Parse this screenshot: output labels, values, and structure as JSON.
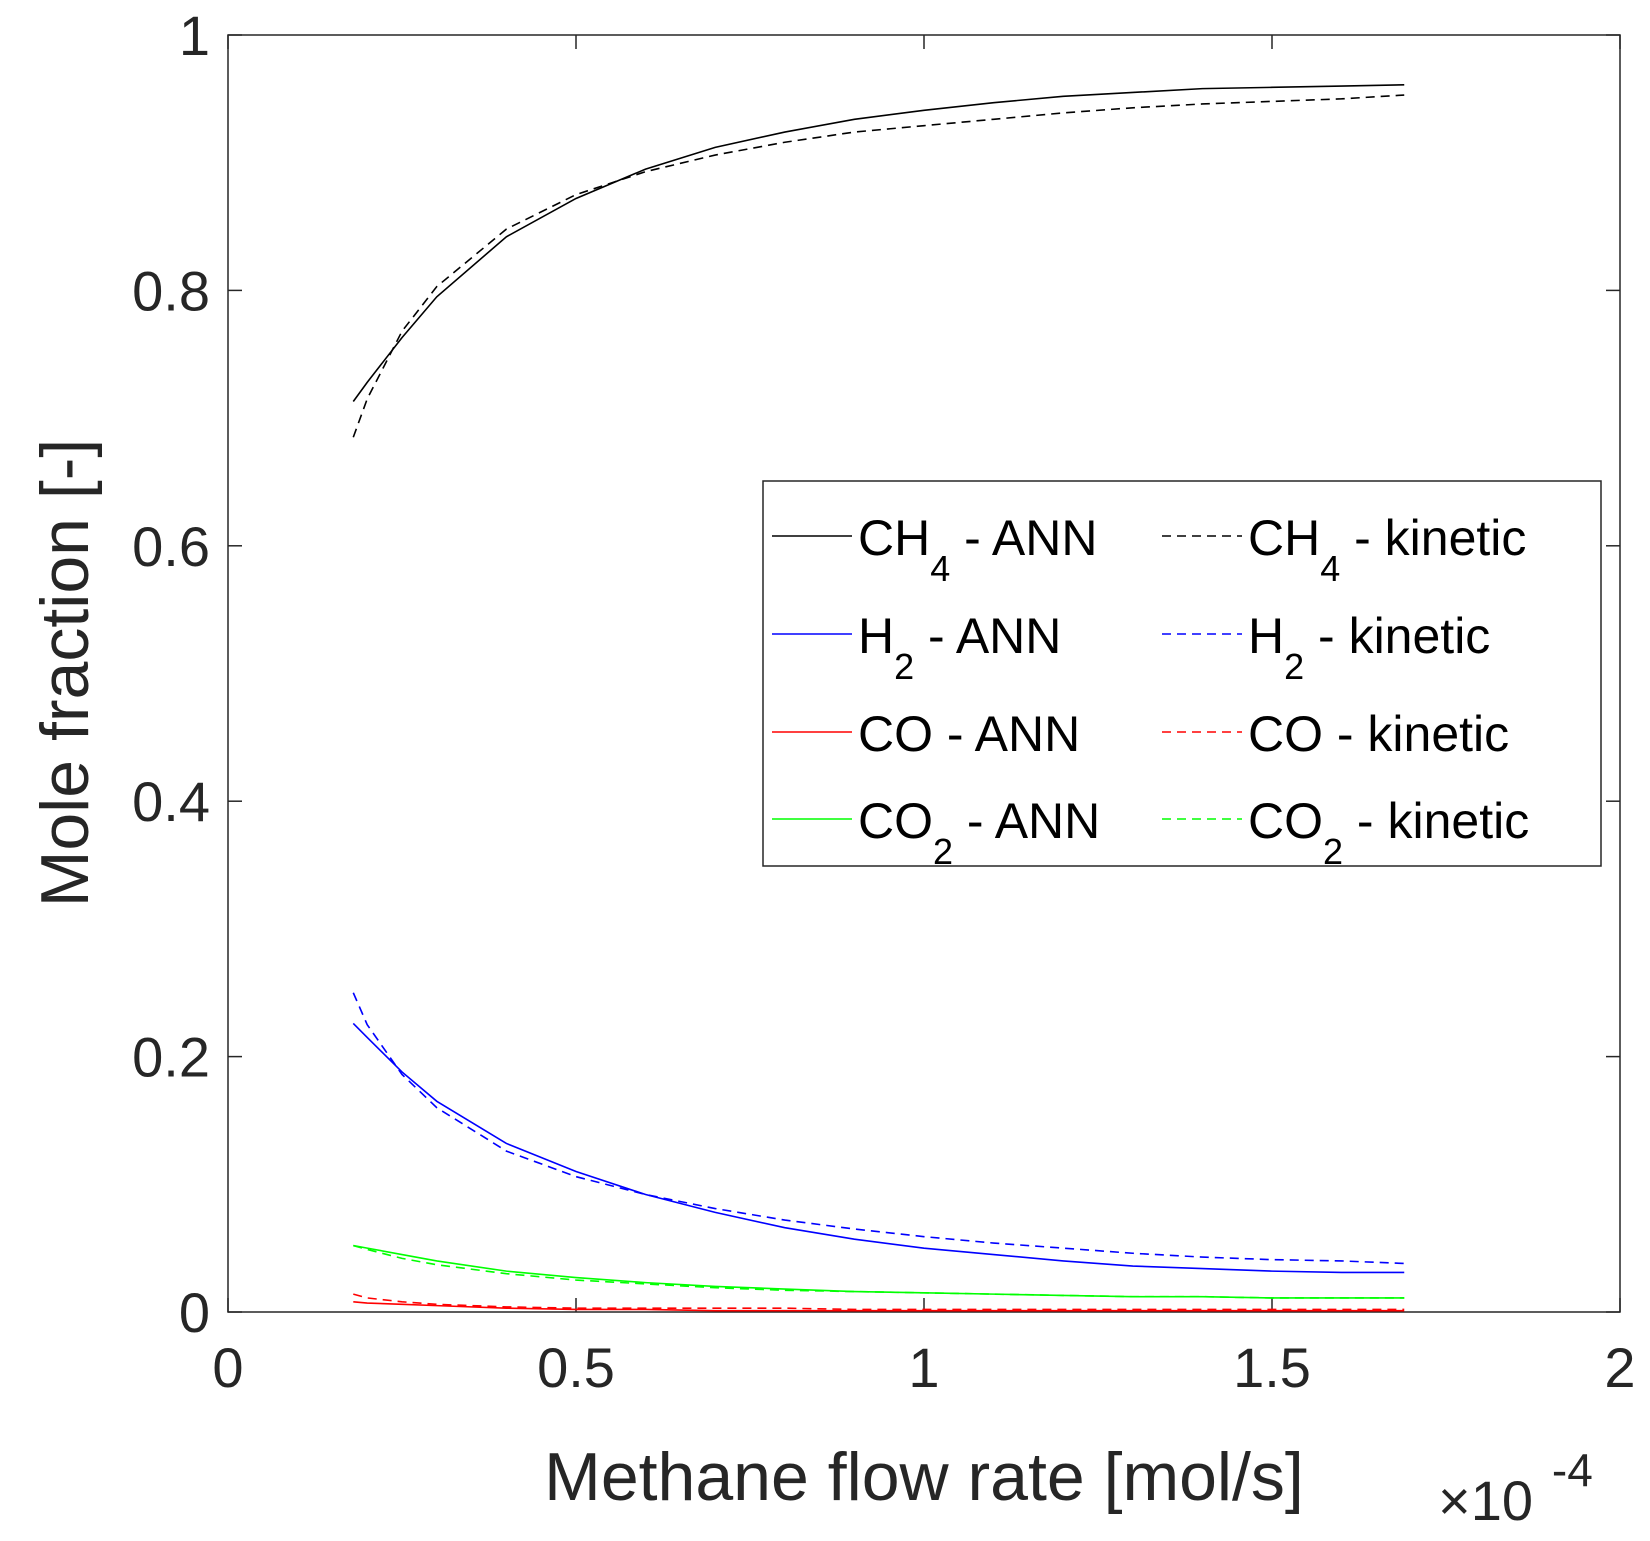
{
  "chart_data": {
    "type": "line",
    "title": "",
    "xlabel": "Methane flow rate [mol/s]",
    "ylabel": "Mole fraction [-]",
    "x_multiplier_label": {
      "base": "×10",
      "exponent": "-4"
    },
    "xlim": [
      0,
      2
    ],
    "ylim": [
      0,
      1
    ],
    "xticks": [
      0,
      0.5,
      1,
      1.5,
      2
    ],
    "xtick_labels": [
      "0",
      "0.5",
      "1",
      "1.5",
      "2"
    ],
    "yticks": [
      0,
      0.2,
      0.4,
      0.6,
      0.8,
      1
    ],
    "ytick_labels": [
      "0",
      "0.2",
      "0.4",
      "0.6",
      "0.8",
      "1"
    ],
    "grid": false,
    "legend_position": "right",
    "x": [
      0.18,
      0.2,
      0.25,
      0.3,
      0.4,
      0.5,
      0.6,
      0.7,
      0.8,
      0.9,
      1.0,
      1.1,
      1.2,
      1.3,
      1.4,
      1.5,
      1.6,
      1.69
    ],
    "series": [
      {
        "name": "CH4 - ANN",
        "label_main": "CH",
        "label_sub": "4",
        "label_rest": " - ANN",
        "color": "#000000",
        "dash": "solid",
        "values": [
          0.713,
          0.728,
          0.763,
          0.795,
          0.842,
          0.872,
          0.895,
          0.912,
          0.924,
          0.934,
          0.941,
          0.947,
          0.952,
          0.955,
          0.958,
          0.959,
          0.96,
          0.961
        ]
      },
      {
        "name": "CH4 - kinetic",
        "label_main": "CH",
        "label_sub": "4",
        "label_rest": " - kinetic",
        "color": "#000000",
        "dash": "dashed",
        "values": [
          0.685,
          0.715,
          0.768,
          0.803,
          0.848,
          0.875,
          0.893,
          0.906,
          0.916,
          0.924,
          0.929,
          0.934,
          0.939,
          0.943,
          0.946,
          0.948,
          0.95,
          0.953
        ]
      },
      {
        "name": "H2 - ANN",
        "label_main": "H",
        "label_sub": "2",
        "label_rest": " - ANN",
        "color": "#0000ff",
        "dash": "solid",
        "values": [
          0.226,
          0.215,
          0.188,
          0.165,
          0.132,
          0.11,
          0.092,
          0.078,
          0.066,
          0.057,
          0.05,
          0.045,
          0.04,
          0.036,
          0.034,
          0.032,
          0.031,
          0.031
        ]
      },
      {
        "name": "H2 - kinetic",
        "label_main": "H",
        "label_sub": "2",
        "label_rest": " - kinetic",
        "color": "#0000ff",
        "dash": "dashed",
        "values": [
          0.25,
          0.225,
          0.186,
          0.16,
          0.126,
          0.106,
          0.092,
          0.081,
          0.072,
          0.065,
          0.059,
          0.054,
          0.05,
          0.046,
          0.043,
          0.041,
          0.04,
          0.038
        ]
      },
      {
        "name": "CO - ANN",
        "label_main": "CO",
        "label_sub": "",
        "label_rest": " - ANN",
        "color": "#ff0000",
        "dash": "solid",
        "values": [
          0.008,
          0.007,
          0.006,
          0.005,
          0.003,
          0.002,
          0.002,
          0.001,
          0.001,
          0.001,
          0.001,
          0.001,
          0.001,
          0.001,
          0.001,
          0.001,
          0.001,
          0.001
        ]
      },
      {
        "name": "CO - kinetic",
        "label_main": "CO",
        "label_sub": "",
        "label_rest": " - kinetic",
        "color": "#ff0000",
        "dash": "dashed",
        "values": [
          0.014,
          0.011,
          0.008,
          0.006,
          0.004,
          0.003,
          0.003,
          0.003,
          0.003,
          0.002,
          0.002,
          0.002,
          0.002,
          0.002,
          0.002,
          0.002,
          0.002,
          0.002
        ]
      },
      {
        "name": "CO2 - ANN",
        "label_main": "CO",
        "label_sub": "2",
        "label_rest": " - ANN",
        "color": "#00ff00",
        "dash": "solid",
        "values": [
          0.052,
          0.05,
          0.045,
          0.04,
          0.032,
          0.027,
          0.023,
          0.02,
          0.018,
          0.016,
          0.015,
          0.014,
          0.013,
          0.012,
          0.012,
          0.011,
          0.011,
          0.011
        ]
      },
      {
        "name": "CO2 - kinetic",
        "label_main": "CO",
        "label_sub": "2",
        "label_rest": "  - kinetic",
        "color": "#00ff00",
        "dash": "dashed",
        "values": [
          0.052,
          0.049,
          0.042,
          0.037,
          0.03,
          0.025,
          0.022,
          0.019,
          0.017,
          0.016,
          0.015,
          0.014,
          0.013,
          0.012,
          0.012,
          0.011,
          0.011,
          0.011
        ]
      }
    ]
  }
}
